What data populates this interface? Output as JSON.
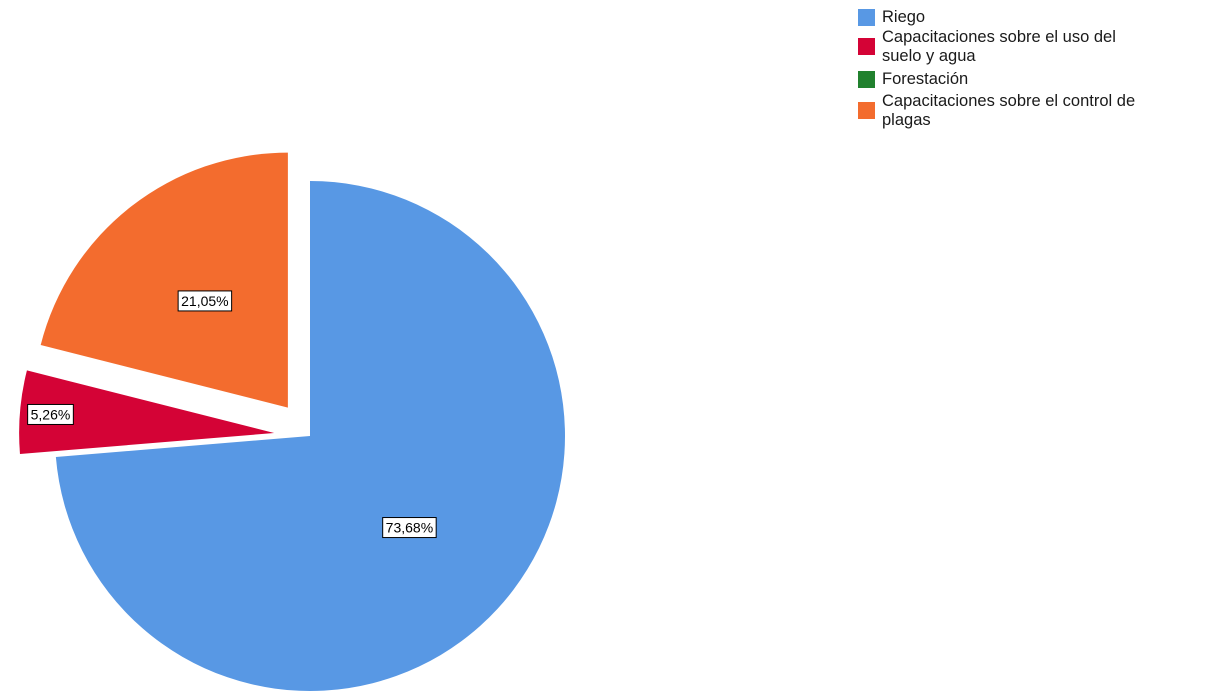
{
  "chart_data": {
    "type": "pie",
    "title": "",
    "slices": [
      {
        "label": "Riego",
        "value": 73.68,
        "data_label": "73,68%",
        "color": "#5898e4",
        "exploded": false
      },
      {
        "label": "Capacitaciones sobre el uso del suelo y agua",
        "value": 5.26,
        "data_label": "5,26%",
        "color": "#d40336",
        "exploded": true
      },
      {
        "label": "Forestación",
        "value": 0,
        "data_label": "",
        "color": "#21812e",
        "exploded": false
      },
      {
        "label": "Capacitaciones sobre el control de plagas",
        "value": 21.05,
        "data_label": "21,05%",
        "color": "#f36c2e",
        "exploded": true
      }
    ],
    "legend_position": "top-right"
  },
  "legend": {
    "items": [
      {
        "label_lines": [
          "Riego"
        ],
        "color": "#5898e4"
      },
      {
        "label_lines": [
          "Capacitaciones sobre el uso del",
          "suelo y agua"
        ],
        "color": "#d40336"
      },
      {
        "label_lines": [
          "Forestación"
        ],
        "color": "#21812e"
      },
      {
        "label_lines": [
          "Capacitaciones sobre el control de",
          "plagas"
        ],
        "color": "#f36c2e"
      }
    ]
  }
}
